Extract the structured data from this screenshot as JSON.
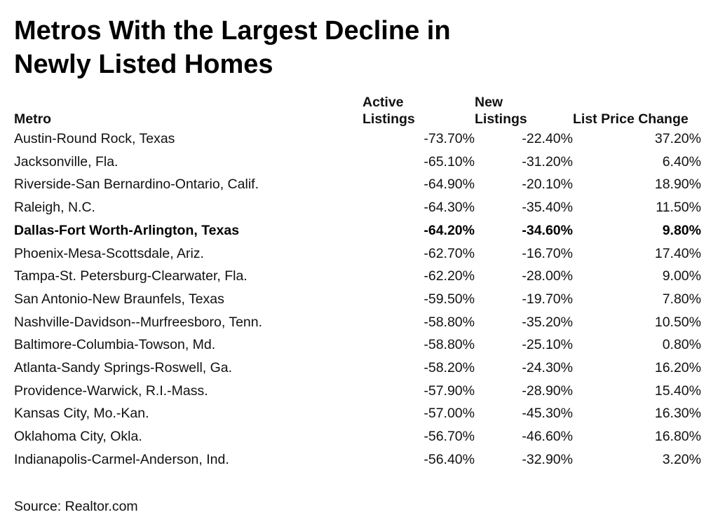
{
  "chart_data": {
    "type": "table",
    "title_lines": [
      "Metros With the Largest Decline in",
      "Newly Listed Homes"
    ],
    "columns": [
      {
        "key": "metro",
        "label_lines": [
          "Metro"
        ]
      },
      {
        "key": "active",
        "label_lines": [
          "Active",
          "Listings"
        ]
      },
      {
        "key": "new",
        "label_lines": [
          "New",
          "Listings"
        ]
      },
      {
        "key": "price",
        "label_lines": [
          "List Price Change"
        ]
      }
    ],
    "rows": [
      {
        "metro": "Austin-Round Rock, Texas",
        "active": "-73.70%",
        "new": "-22.40%",
        "price": "37.20%",
        "bold": false
      },
      {
        "metro": "Jacksonville, Fla.",
        "active": "-65.10%",
        "new": "-31.20%",
        "price": "6.40%",
        "bold": false
      },
      {
        "metro": "Riverside-San Bernardino-Ontario, Calif.",
        "active": "-64.90%",
        "new": "-20.10%",
        "price": "18.90%",
        "bold": false
      },
      {
        "metro": "Raleigh, N.C.",
        "active": "-64.30%",
        "new": "-35.40%",
        "price": "11.50%",
        "bold": false
      },
      {
        "metro": "Dallas-Fort Worth-Arlington, Texas",
        "active": "-64.20%",
        "new": "-34.60%",
        "price": "9.80%",
        "bold": true
      },
      {
        "metro": "Phoenix-Mesa-Scottsdale, Ariz.",
        "active": "-62.70%",
        "new": "-16.70%",
        "price": "17.40%",
        "bold": false
      },
      {
        "metro": "Tampa-St. Petersburg-Clearwater, Fla.",
        "active": "-62.20%",
        "new": "-28.00%",
        "price": "9.00%",
        "bold": false
      },
      {
        "metro": "San Antonio-New Braunfels, Texas",
        "active": "-59.50%",
        "new": "-19.70%",
        "price": "7.80%",
        "bold": false
      },
      {
        "metro": "Nashville-Davidson--Murfreesboro, Tenn.",
        "active": "-58.80%",
        "new": "-35.20%",
        "price": "10.50%",
        "bold": false
      },
      {
        "metro": "Baltimore-Columbia-Towson, Md.",
        "active": "-58.80%",
        "new": "-25.10%",
        "price": "0.80%",
        "bold": false
      },
      {
        "metro": "Atlanta-Sandy Springs-Roswell, Ga.",
        "active": "-58.20%",
        "new": "-24.30%",
        "price": "16.20%",
        "bold": false
      },
      {
        "metro": "Providence-Warwick, R.I.-Mass.",
        "active": "-57.90%",
        "new": "-28.90%",
        "price": "15.40%",
        "bold": false
      },
      {
        "metro": "Kansas City, Mo.-Kan.",
        "active": "-57.00%",
        "new": "-45.30%",
        "price": "16.30%",
        "bold": false
      },
      {
        "metro": "Oklahoma City, Okla.",
        "active": "-56.70%",
        "new": "-46.60%",
        "price": "16.80%",
        "bold": false
      },
      {
        "metro": "Indianapolis-Carmel-Anderson, Ind.",
        "active": "-56.40%",
        "new": "-32.90%",
        "price": "3.20%",
        "bold": false
      }
    ],
    "source": "Source: Realtor.com"
  }
}
